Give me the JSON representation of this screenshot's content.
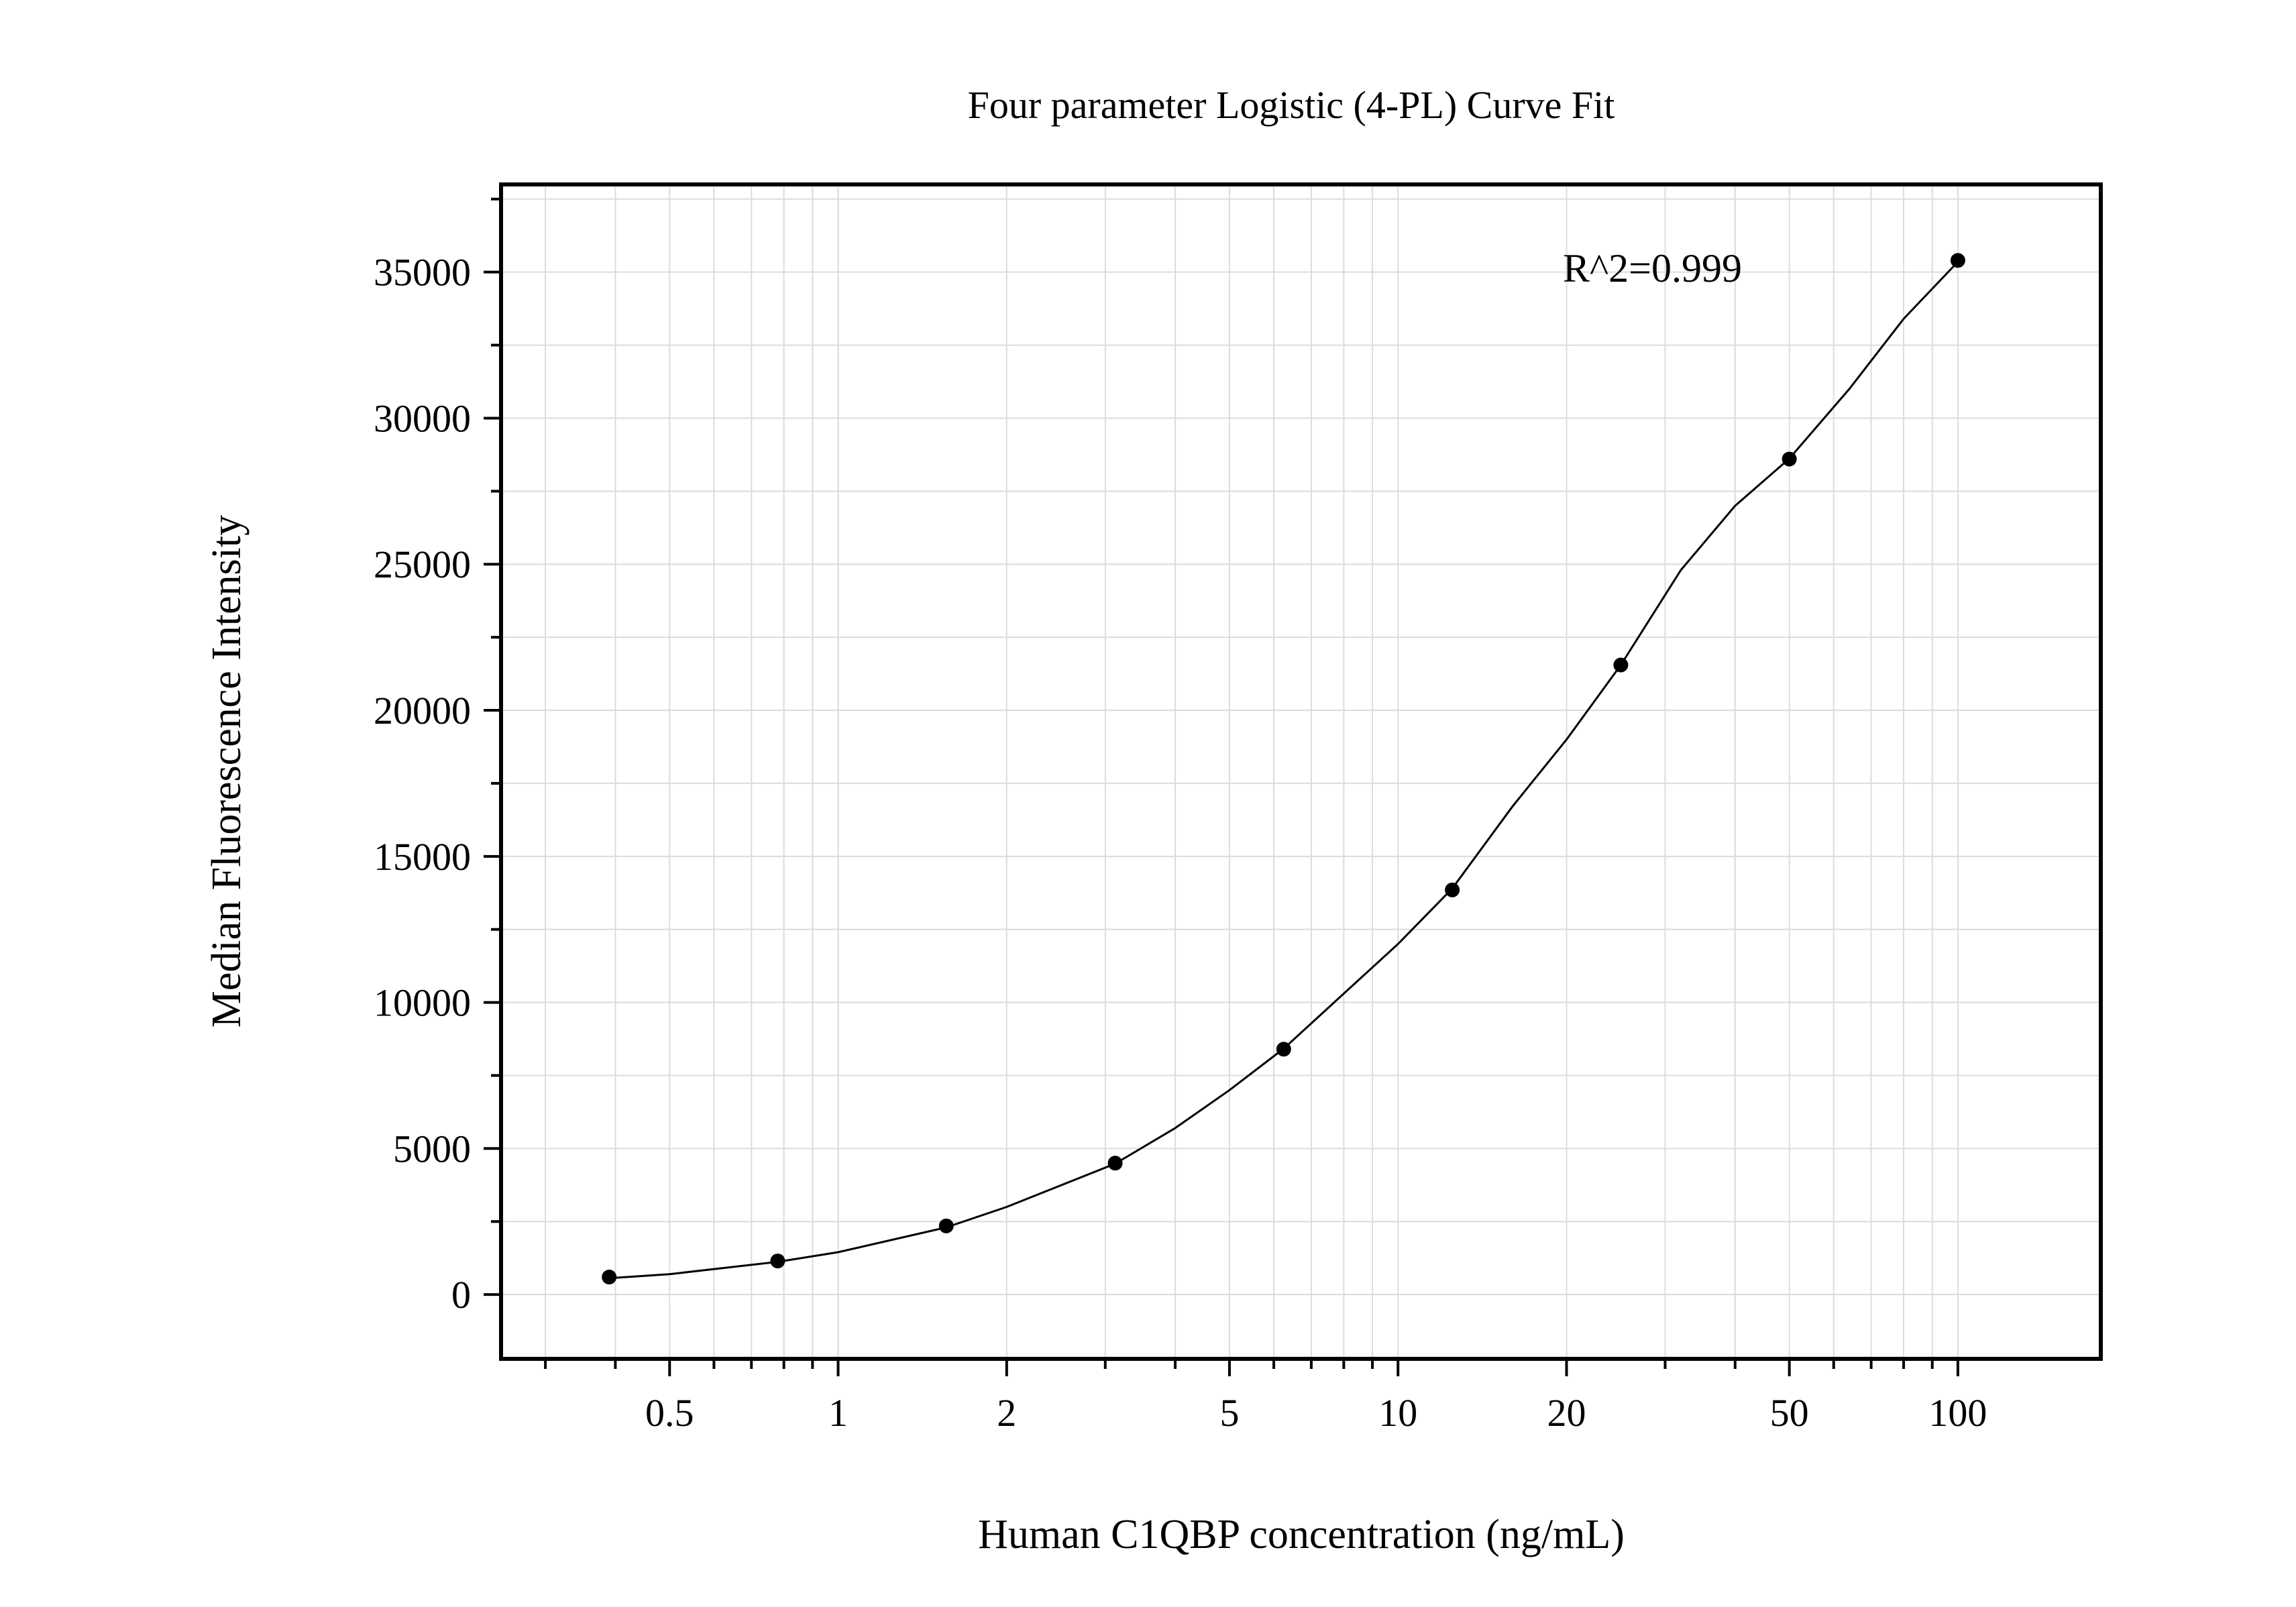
{
  "chart_data": {
    "type": "scatter",
    "title": "Four parameter Logistic (4-PL) Curve Fit",
    "xlabel": "Human C1QBP concentration (ng/mL)",
    "ylabel": "Median Fluorescence Intensity",
    "x_scale": "log",
    "xlim": [
      0.25,
      180
    ],
    "ylim": [
      -2200,
      38000
    ],
    "x_ticks": [
      {
        "value": 0.5,
        "label": "0.5"
      },
      {
        "value": 1,
        "label": "1"
      },
      {
        "value": 2,
        "label": "2"
      },
      {
        "value": 5,
        "label": "5"
      },
      {
        "value": 10,
        "label": "10"
      },
      {
        "value": 20,
        "label": "20"
      },
      {
        "value": 50,
        "label": "50"
      },
      {
        "value": 100,
        "label": "100"
      }
    ],
    "y_ticks": [
      {
        "value": 0,
        "label": "0"
      },
      {
        "value": 5000,
        "label": "5000"
      },
      {
        "value": 10000,
        "label": "10000"
      },
      {
        "value": 15000,
        "label": "15000"
      },
      {
        "value": 20000,
        "label": "20000"
      },
      {
        "value": 25000,
        "label": "25000"
      },
      {
        "value": 30000,
        "label": "30000"
      },
      {
        "value": 35000,
        "label": "35000"
      }
    ],
    "grid": true,
    "annotation": "R^2=0.999",
    "series": [
      {
        "points": [
          {
            "x": 0.39,
            "y": 600
          },
          {
            "x": 0.78,
            "y": 1150
          },
          {
            "x": 1.56,
            "y": 2350
          },
          {
            "x": 3.125,
            "y": 4500
          },
          {
            "x": 6.25,
            "y": 8400
          },
          {
            "x": 12.5,
            "y": 13850
          },
          {
            "x": 25,
            "y": 21550
          },
          {
            "x": 50,
            "y": 28600
          },
          {
            "x": 100,
            "y": 35400
          }
        ],
        "color": "#000000"
      }
    ],
    "fit_curve": {
      "model": "4-PL",
      "color": "#000000",
      "points": [
        [
          0.39,
          560
        ],
        [
          0.5,
          700
        ],
        [
          0.78,
          1120
        ],
        [
          1,
          1450
        ],
        [
          1.56,
          2300
        ],
        [
          2,
          3000
        ],
        [
          3.125,
          4480
        ],
        [
          4,
          5700
        ],
        [
          5,
          7000
        ],
        [
          6.25,
          8420
        ],
        [
          8,
          10300
        ],
        [
          10,
          12000
        ],
        [
          12.5,
          13900
        ],
        [
          16,
          16700
        ],
        [
          20,
          19000
        ],
        [
          25,
          21550
        ],
        [
          32,
          24800
        ],
        [
          40,
          27000
        ],
        [
          50,
          28620
        ],
        [
          64,
          31000
        ],
        [
          80,
          33400
        ],
        [
          100,
          35350
        ]
      ]
    }
  }
}
